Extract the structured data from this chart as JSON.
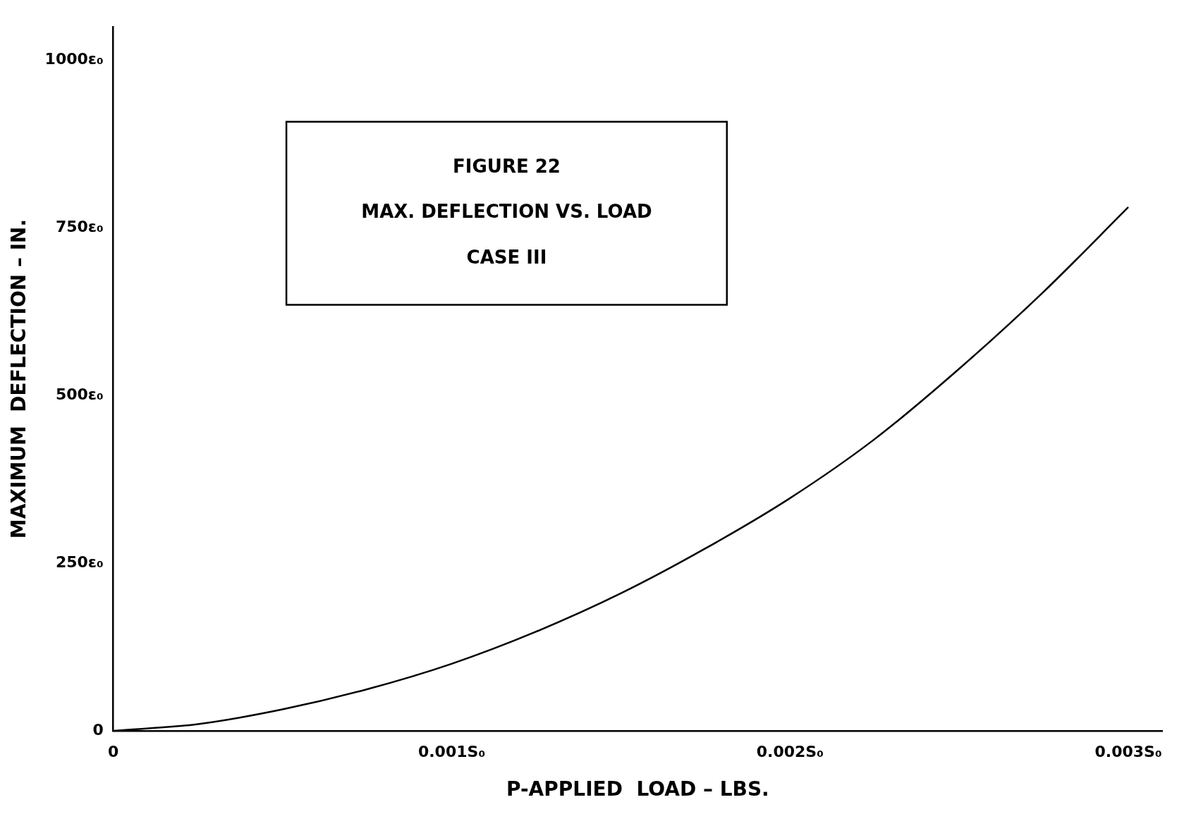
{
  "chart_data": {
    "type": "line",
    "title": "FIGURE 22",
    "subtitle": "MAX. DEFLECTION VS. LOAD",
    "annotations": [
      "CASE III"
    ],
    "xlabel": "P-APPLIED  LOAD – LBS.",
    "ylabel": "MAXIMUM  DEFLECTION – IN.",
    "series": [
      {
        "color": "#000000",
        "x": [
          0,
          0.00025,
          0.0005,
          0.00075,
          0.001,
          0.00125,
          0.0015,
          0.00175,
          0.002,
          0.00225,
          0.0025,
          0.00275,
          0.003
        ],
        "values": [
          0,
          10,
          32,
          62,
          100,
          148,
          205,
          272,
          347,
          435,
          540,
          655,
          781
        ]
      }
    ],
    "xlim": [
      0,
      0.0031
    ],
    "ylim": [
      0,
      1050
    ],
    "xticks": [
      0,
      {
        "value": 0.001,
        "label": "0.001S₀"
      },
      {
        "value": 0.002,
        "label": "0.002S₀"
      },
      {
        "value": 0.003,
        "label": "0.003S₀"
      }
    ],
    "yticks": [
      0,
      {
        "value": 250,
        "label": "250ε₀"
      },
      {
        "value": 500,
        "label": "500ε₀"
      },
      {
        "value": 750,
        "label": "750ε₀"
      },
      {
        "value": 1000,
        "label": "1000ε₀"
      }
    ],
    "grid": false,
    "legend": false,
    "marker": "none",
    "line_style": "solid"
  }
}
